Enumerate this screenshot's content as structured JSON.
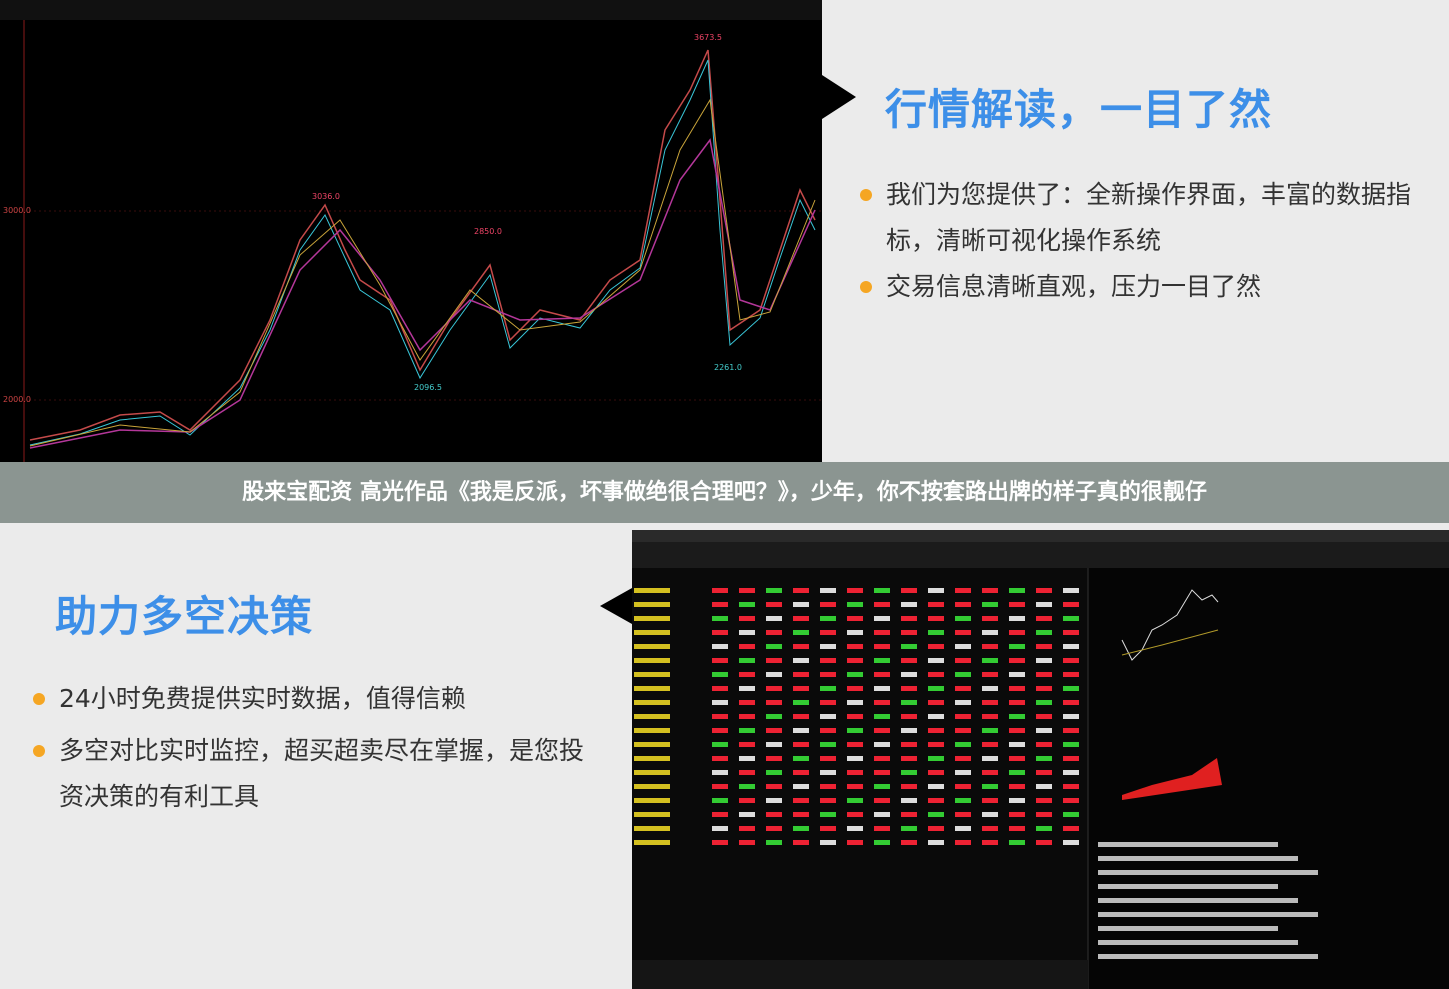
{
  "top_panel": {
    "heading": "行情解读，一目了然",
    "bullets": [
      "我们为您提供了：全新操作界面，丰富的数据指标，清晰可视化操作系统",
      "交易信息清晰直观，压力一目了然"
    ]
  },
  "banner": "股来宝配资 高光作品《我是反派，坏事做绝很合理吧？》，少年，你不按套路出牌的样子真的很靓仔",
  "bottom_panel": {
    "heading": "助力多空决策",
    "bullets": [
      "24小时免费提供实时数据，值得信赖",
      "多空对比实时监控，超买超卖尽在掌握，是您投资决策的有利工具"
    ]
  },
  "chart_screenshot": {
    "price_labels": [
      "3673.5",
      "3036.0",
      "2850.0",
      "2096.5",
      "2261.0"
    ],
    "axis_labels": [
      "3000.0",
      "2000.0"
    ]
  }
}
